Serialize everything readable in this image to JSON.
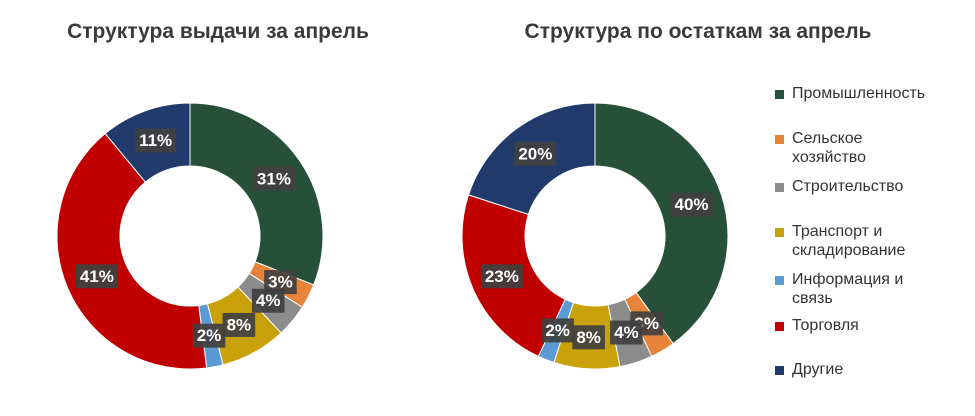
{
  "chart_data": [
    {
      "type": "donut",
      "title": "Структура выдачи за апрель",
      "categories": [
        "Промышленность",
        "Сельское хозяйство",
        "Строительство",
        "Транспорт и складирование",
        "Информация и связь",
        "Торговля",
        "Другие"
      ],
      "values": [
        31,
        3,
        4,
        8,
        2,
        41,
        11
      ],
      "value_labels": [
        "31%",
        "3%",
        "4%",
        "8%",
        "2%",
        "41%",
        "11%"
      ],
      "colors": [
        "#27503a",
        "#e8833a",
        "#8c8c8c",
        "#c9a10a",
        "#5b9bd5",
        "#c00000",
        "#203a6b"
      ]
    },
    {
      "type": "donut",
      "title": "Структура по остаткам за апрель",
      "categories": [
        "Промышленность",
        "Сельское хозяйство",
        "Строительство",
        "Транспорт и складирование",
        "Информация и связь",
        "Торговля",
        "Другие"
      ],
      "values": [
        40,
        3,
        4,
        8,
        2,
        23,
        20
      ],
      "value_labels": [
        "40%",
        "3%",
        "4%",
        "8%",
        "2%",
        "23%",
        "20%"
      ],
      "colors": [
        "#27503a",
        "#e8833a",
        "#8c8c8c",
        "#c9a10a",
        "#5b9bd5",
        "#c00000",
        "#203a6b"
      ],
      "legend": "right"
    }
  ]
}
